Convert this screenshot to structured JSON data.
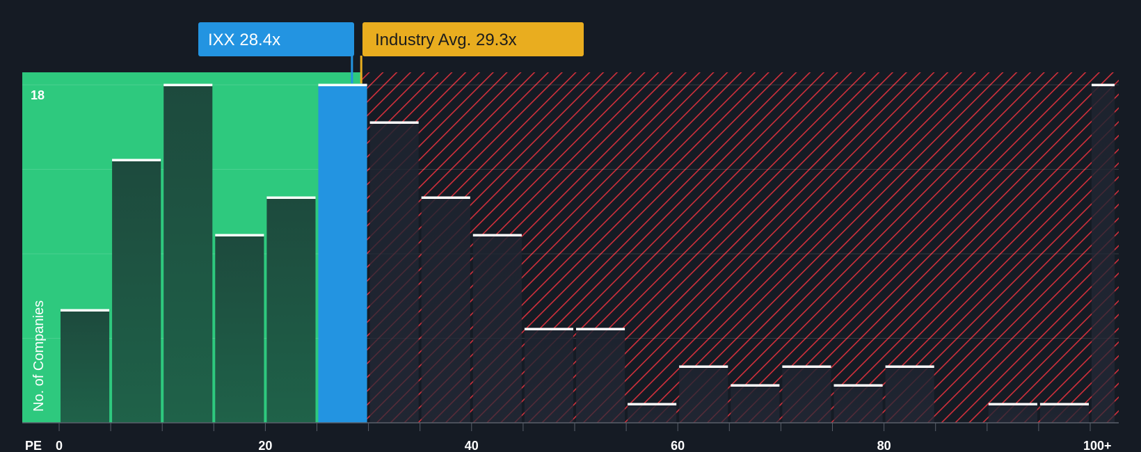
{
  "chart_data": {
    "type": "bar",
    "title": "",
    "xlabel": "PE",
    "ylabel": "No. of Companies",
    "x_tick_labels": [
      "0",
      "20",
      "40",
      "60",
      "80",
      "100+"
    ],
    "x_tick_values": [
      0,
      20,
      40,
      60,
      80,
      100
    ],
    "y_tick_label": "18",
    "ylim": [
      0,
      18
    ],
    "bin_width": 5,
    "bins": [
      {
        "start": 0,
        "end": 5,
        "value": 6
      },
      {
        "start": 5,
        "end": 10,
        "value": 14
      },
      {
        "start": 10,
        "end": 15,
        "value": 18
      },
      {
        "start": 15,
        "end": 20,
        "value": 10
      },
      {
        "start": 20,
        "end": 25,
        "value": 12
      },
      {
        "start": 25,
        "end": 30,
        "value": 18
      },
      {
        "start": 30,
        "end": 35,
        "value": 16
      },
      {
        "start": 35,
        "end": 40,
        "value": 12
      },
      {
        "start": 40,
        "end": 45,
        "value": 10
      },
      {
        "start": 45,
        "end": 50,
        "value": 5
      },
      {
        "start": 50,
        "end": 55,
        "value": 5
      },
      {
        "start": 55,
        "end": 60,
        "value": 1
      },
      {
        "start": 60,
        "end": 65,
        "value": 3
      },
      {
        "start": 65,
        "end": 70,
        "value": 2
      },
      {
        "start": 70,
        "end": 75,
        "value": 3
      },
      {
        "start": 75,
        "end": 80,
        "value": 2
      },
      {
        "start": 80,
        "end": 85,
        "value": 3
      },
      {
        "start": 85,
        "end": 90,
        "value": 0
      },
      {
        "start": 90,
        "end": 95,
        "value": 1
      },
      {
        "start": 95,
        "end": 100,
        "value": 1
      },
      {
        "start": 100,
        "end": 102.5,
        "value": 18
      }
    ],
    "company": {
      "label": "IXX 28.4x",
      "value": 28.4,
      "color": "#2394e1"
    },
    "industry": {
      "label": "Industry Avg. 29.3x",
      "value": 29.3,
      "color": "#e9ad1f"
    },
    "colors": {
      "below_average_zone": "#2ec97e",
      "above_average_zone": "#d2303c",
      "company_bin": "#2394e1",
      "bar_cap": "#ffffff",
      "background": "#151b24"
    }
  }
}
